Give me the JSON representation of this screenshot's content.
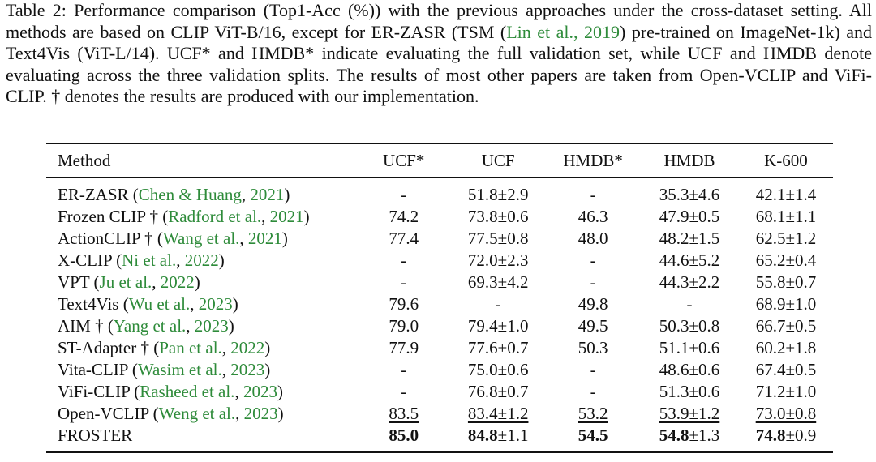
{
  "caption": {
    "p1": "Table 2: Performance comparison (Top1-Acc (%)) with the previous approaches under the cross-dataset setting. All methods are based on CLIP ViT-B/16, except for ER-ZASR (TSM (",
    "c1": "Lin et al., 2019",
    "p2": ") pre-trained on ImageNet-1k) and Text4Vis (ViT-L/14). UCF* and HMDB* indicate evaluating the full validation set, while UCF and HMDB denote evaluating across the three validation splits. The results of most other papers are taken from Open-VCLIP and ViFi-CLIP. † denotes the results are produced with our implementation."
  },
  "table": {
    "headers": [
      "Method",
      "UCF*",
      "UCF",
      "HMDB*",
      "HMDB",
      "K-600"
    ],
    "rows": [
      {
        "name": "ER-ZASR",
        "dagger": "",
        "cite_author": "Chen & Huang",
        "cite_year": "2021",
        "ucf_full": "-",
        "ucf": "51.8±2.9",
        "hmdb_full": "-",
        "hmdb": "35.3±4.6",
        "k600": "42.1±1.4"
      },
      {
        "name": "Frozen CLIP",
        "dagger": " †",
        "cite_author": "Radford et al.",
        "cite_year": "2021",
        "ucf_full": "74.2",
        "ucf": "73.8±0.6",
        "hmdb_full": "46.3",
        "hmdb": "47.9±0.5",
        "k600": "68.1±1.1"
      },
      {
        "name": "ActionCLIP",
        "dagger": " †",
        "cite_author": "Wang et al.",
        "cite_year": "2021",
        "ucf_full": "77.4",
        "ucf": "77.5±0.8",
        "hmdb_full": "48.0",
        "hmdb": "48.2±1.5",
        "k600": "62.5±1.2"
      },
      {
        "name": "X-CLIP",
        "dagger": "",
        "cite_author": "Ni et al.",
        "cite_year": "2022",
        "ucf_full": "-",
        "ucf": "72.0±2.3",
        "hmdb_full": "-",
        "hmdb": "44.6±5.2",
        "k600": "65.2±0.4"
      },
      {
        "name": "VPT",
        "dagger": "",
        "cite_author": "Ju et al.",
        "cite_year": "2022",
        "ucf_full": "-",
        "ucf": "69.3±4.2",
        "hmdb_full": "-",
        "hmdb": "44.3±2.2",
        "k600": "55.8±0.7"
      },
      {
        "name": "Text4Vis",
        "dagger": "",
        "cite_author": "Wu et al.",
        "cite_year": "2023",
        "ucf_full": "79.6",
        "ucf": "-",
        "hmdb_full": "49.8",
        "hmdb": "-",
        "k600": "68.9±1.0"
      },
      {
        "name": "AIM",
        "dagger": " †",
        "cite_author": "Yang et al.",
        "cite_year": "2023",
        "ucf_full": "79.0",
        "ucf": "79.4±1.0",
        "hmdb_full": "49.5",
        "hmdb": "50.3±0.8",
        "k600": "66.7±0.5"
      },
      {
        "name": "ST-Adapter",
        "dagger": " †",
        "cite_author": "Pan et al.",
        "cite_year": "2022",
        "ucf_full": "77.9",
        "ucf": "77.6±0.7",
        "hmdb_full": "50.3",
        "hmdb": "51.1±0.6",
        "k600": "60.2±1.8"
      },
      {
        "name": "Vita-CLIP",
        "dagger": "",
        "cite_author": "Wasim et al.",
        "cite_year": "2023",
        "ucf_full": "-",
        "ucf": "75.0±0.6",
        "hmdb_full": "-",
        "hmdb": "48.6±0.6",
        "k600": "67.4±0.5"
      },
      {
        "name": "ViFi-CLIP",
        "dagger": "",
        "cite_author": "Rasheed et al.",
        "cite_year": "2023",
        "ucf_full": "-",
        "ucf": "76.8±0.7",
        "hmdb_full": "-",
        "hmdb": "51.3±0.6",
        "k600": "71.2±1.0"
      },
      {
        "name": "Open-VCLIP",
        "dagger": "",
        "cite_author": "Weng et al.",
        "cite_year": "2023",
        "ucf_full": "83.5",
        "ucf": "83.4±1.2",
        "hmdb_full": "53.2",
        "hmdb": "53.9±1.2",
        "k600": "73.0±0.8"
      }
    ],
    "froster": {
      "name": "FROSTER",
      "ucf_full": "85.0",
      "ucf_mean": "84.8",
      "ucf_std": "±1.1",
      "hmdb_full": "54.5",
      "hmdb_mean": "54.8",
      "hmdb_std": "±1.3",
      "k600_mean": "74.8",
      "k600_std": "±0.9"
    }
  },
  "colors": {
    "citation": "#2e8b3a",
    "text": "#111111"
  }
}
